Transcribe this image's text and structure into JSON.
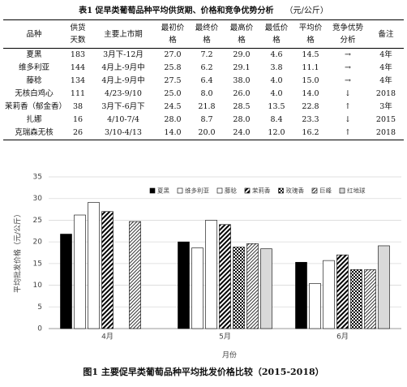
{
  "table": {
    "title": "表1  促早类葡萄品种平均供货期、价格和竞争优势分析",
    "unit": "（元/公斤）",
    "columns": [
      "品种",
      "供货天数",
      "主要上市期",
      "最初价格",
      "最终价格",
      "最高价格",
      "最低价格",
      "平均价格",
      "竞争优势分析",
      "备注"
    ],
    "rows": [
      [
        "夏黑",
        "183",
        "3月下-12月",
        "27.0",
        "7.2",
        "29.0",
        "4.6",
        "14.5",
        "→",
        "4年"
      ],
      [
        "维多利亚",
        "144",
        "4月上-9月中",
        "25.8",
        "6.2",
        "29.1",
        "3.8",
        "11.1",
        "→",
        "4年"
      ],
      [
        "藤稔",
        "134",
        "4月上-9月中",
        "27.5",
        "6.4",
        "38.0",
        "4.0",
        "15.0",
        "→",
        "4年"
      ],
      [
        "无核白鸡心",
        "111",
        "4/23-9/10",
        "25.0",
        "8.0",
        "26.0",
        "4.0",
        "14.0",
        "↓",
        "2018"
      ],
      [
        "茉莉香（郁金香）",
        "38",
        "3月下-6月下",
        "24.5",
        "21.8",
        "28.5",
        "13.5",
        "22.8",
        "↑",
        "3年"
      ],
      [
        "扎娜",
        "16",
        "4/10-7/4",
        "28.0",
        "8.7",
        "28.0",
        "8.4",
        "23.3",
        "↓",
        "2015"
      ],
      [
        "克瑞森无核",
        "26",
        "3/10-4/13",
        "14.0",
        "20.0",
        "24.0",
        "12.0",
        "16.2",
        "↑",
        "2018"
      ]
    ]
  },
  "chart_data": {
    "type": "bar",
    "x_label": "月份",
    "y_label": "平均批发价格（元/公斤）",
    "categories": [
      "4月",
      "5月",
      "6月"
    ],
    "series": [
      {
        "name": "夏黑",
        "color": "#000000",
        "pattern": "solid",
        "values": [
          21.8,
          20.0,
          15.3
        ]
      },
      {
        "name": "维多利亚",
        "color": "#ffffff",
        "pattern": "solid",
        "values": [
          26.2,
          18.6,
          10.4
        ]
      },
      {
        "name": "藤稔",
        "color": "#ffffff",
        "pattern": "solid",
        "values": [
          29.1,
          25.0,
          15.7
        ]
      },
      {
        "name": "茉莉香",
        "color": "#000000",
        "pattern": "stripes",
        "values": [
          27.0,
          24.0,
          17.0
        ]
      },
      {
        "name": "玫瑰香",
        "color": "#000000",
        "pattern": "checks",
        "values": [
          null,
          18.8,
          13.6
        ]
      },
      {
        "name": "巨峰",
        "color": "#000000",
        "pattern": "dots",
        "values": [
          24.7,
          19.6,
          13.6
        ]
      },
      {
        "name": "红地球",
        "color": "#d9d9d9",
        "pattern": "solid",
        "values": [
          null,
          18.4,
          19.1
        ]
      }
    ],
    "ylim": [
      0,
      35
    ],
    "yticks": [
      0,
      5,
      10,
      15,
      20,
      25,
      30,
      35
    ],
    "grid": true
  },
  "caption": "图1    主要促早类葡萄品种平均批发价格比较（2015-2018）"
}
